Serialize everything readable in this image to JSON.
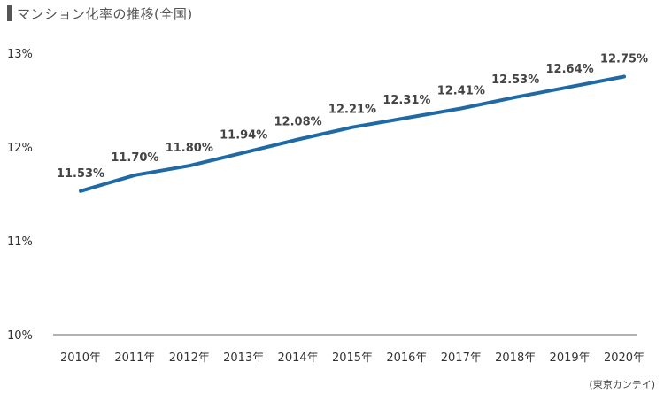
{
  "title": "マンション化率の推移(全国)",
  "source": "(東京カンテイ)",
  "colors": {
    "line": "#1f6aa5",
    "axis": "#666666",
    "title_bar": "#555555"
  },
  "chart_data": {
    "type": "line",
    "title": "マンション化率の推移(全国)",
    "categories": [
      "2010年",
      "2011年",
      "2012年",
      "2013年",
      "2014年",
      "2015年",
      "2016年",
      "2017年",
      "2018年",
      "2019年",
      "2020年"
    ],
    "series": [
      {
        "values": [
          11.53,
          11.7,
          11.8,
          11.94,
          12.08,
          12.21,
          12.31,
          12.41,
          12.53,
          12.64,
          12.75
        ]
      }
    ],
    "data_labels": [
      "11.53%",
      "11.70%",
      "11.80%",
      "11.94%",
      "12.08%",
      "12.21%",
      "12.31%",
      "12.41%",
      "12.53%",
      "12.64%",
      "12.75%"
    ],
    "y_ticks": [
      13,
      12,
      11,
      10
    ],
    "y_tick_labels": [
      "13%",
      "12%",
      "11%",
      "10%"
    ],
    "ylim": [
      10,
      13
    ],
    "grid": false
  }
}
